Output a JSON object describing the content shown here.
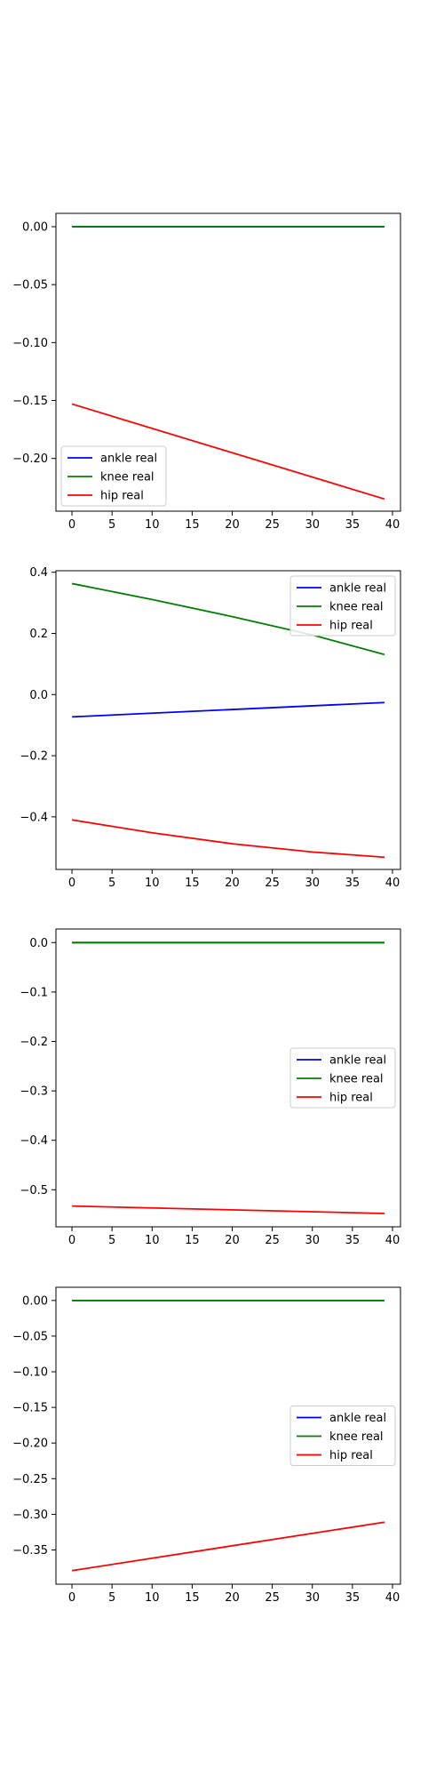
{
  "chart_data": [
    {
      "type": "line",
      "title": "",
      "xlabel": "",
      "ylabel": "",
      "xlim": [
        -2,
        41
      ],
      "ylim": [
        -0.2455,
        0.0115
      ],
      "xticks": [
        0,
        5,
        10,
        15,
        20,
        25,
        30,
        35,
        40
      ],
      "yticks": [
        0.0,
        -0.05,
        -0.1,
        -0.15,
        -0.2
      ],
      "ytick_labels": [
        "0.00",
        "−0.05",
        "−0.10",
        "−0.15",
        "−0.20"
      ],
      "xtick_labels": [
        "0",
        "5",
        "10",
        "15",
        "20",
        "25",
        "30",
        "35",
        "40"
      ],
      "legend_position": "lower-left",
      "grid": false,
      "series": [
        {
          "name": "ankle real",
          "color": "#0000ff",
          "x": [
            0,
            39
          ],
          "y": [
            0.0,
            0.0
          ]
        },
        {
          "name": "knee real",
          "color": "#008000",
          "x": [
            0,
            39
          ],
          "y": [
            0.0,
            0.0
          ]
        },
        {
          "name": "hip real",
          "color": "#ff0000",
          "x": [
            0,
            39
          ],
          "y": [
            -0.153,
            -0.235
          ]
        }
      ]
    },
    {
      "type": "line",
      "title": "",
      "xlabel": "",
      "ylabel": "",
      "xlim": [
        -2,
        41
      ],
      "ylim": [
        -0.572,
        0.405
      ],
      "xticks": [
        0,
        5,
        10,
        15,
        20,
        25,
        30,
        35,
        40
      ],
      "yticks": [
        0.4,
        0.2,
        0.0,
        -0.2,
        -0.4
      ],
      "ytick_labels": [
        "0.4",
        "0.2",
        "0.0",
        "−0.2",
        "−0.4"
      ],
      "xtick_labels": [
        "0",
        "5",
        "10",
        "15",
        "20",
        "25",
        "30",
        "35",
        "40"
      ],
      "legend_position": "upper-right",
      "grid": false,
      "series": [
        {
          "name": "ankle real",
          "color": "#0000ff",
          "x": [
            0,
            39
          ],
          "y": [
            -0.073,
            -0.026
          ]
        },
        {
          "name": "knee real",
          "color": "#008000",
          "x": [
            0,
            10,
            20,
            30,
            39
          ],
          "y": [
            0.363,
            0.311,
            0.255,
            0.195,
            0.131
          ]
        },
        {
          "name": "hip real",
          "color": "#ff0000",
          "x": [
            0,
            10,
            20,
            30,
            39
          ],
          "y": [
            -0.41,
            -0.452,
            -0.488,
            -0.515,
            -0.532
          ]
        }
      ]
    },
    {
      "type": "line",
      "title": "",
      "xlabel": "",
      "ylabel": "",
      "xlim": [
        -2,
        41
      ],
      "ylim": [
        -0.575,
        0.0275
      ],
      "xticks": [
        0,
        5,
        10,
        15,
        20,
        25,
        30,
        35,
        40
      ],
      "yticks": [
        0.0,
        -0.1,
        -0.2,
        -0.3,
        -0.4,
        -0.5
      ],
      "ytick_labels": [
        "0.0",
        "−0.1",
        "−0.2",
        "−0.3",
        "−0.4",
        "−0.5"
      ],
      "xtick_labels": [
        "0",
        "5",
        "10",
        "15",
        "20",
        "25",
        "30",
        "35",
        "40"
      ],
      "legend_position": "center-right",
      "grid": false,
      "series": [
        {
          "name": "ankle real",
          "color": "#0000ff",
          "x": [
            0,
            39
          ],
          "y": [
            0.0,
            0.0
          ]
        },
        {
          "name": "knee real",
          "color": "#008000",
          "x": [
            0,
            39
          ],
          "y": [
            0.0,
            0.0
          ]
        },
        {
          "name": "hip real",
          "color": "#ff0000",
          "x": [
            0,
            39
          ],
          "y": [
            -0.533,
            -0.548
          ]
        }
      ]
    },
    {
      "type": "line",
      "title": "",
      "xlabel": "",
      "ylabel": "",
      "xlim": [
        -2,
        41
      ],
      "ylim": [
        -0.398,
        0.0185
      ],
      "xticks": [
        0,
        5,
        10,
        15,
        20,
        25,
        30,
        35,
        40
      ],
      "yticks": [
        0.0,
        -0.05,
        -0.1,
        -0.15,
        -0.2,
        -0.25,
        -0.3,
        -0.35
      ],
      "ytick_labels": [
        "0.00",
        "−0.05",
        "−0.10",
        "−0.15",
        "−0.20",
        "−0.25",
        "−0.30",
        "−0.35"
      ],
      "xtick_labels": [
        "0",
        "5",
        "10",
        "15",
        "20",
        "25",
        "30",
        "35",
        "40"
      ],
      "legend_position": "center-right",
      "grid": false,
      "series": [
        {
          "name": "ankle real",
          "color": "#0000ff",
          "x": [
            0,
            39
          ],
          "y": [
            0.0,
            0.0
          ]
        },
        {
          "name": "knee real",
          "color": "#008000",
          "x": [
            0,
            39
          ],
          "y": [
            0.0,
            0.0
          ]
        },
        {
          "name": "hip real",
          "color": "#ff0000",
          "x": [
            0,
            39
          ],
          "y": [
            -0.379,
            -0.311
          ]
        }
      ]
    }
  ]
}
